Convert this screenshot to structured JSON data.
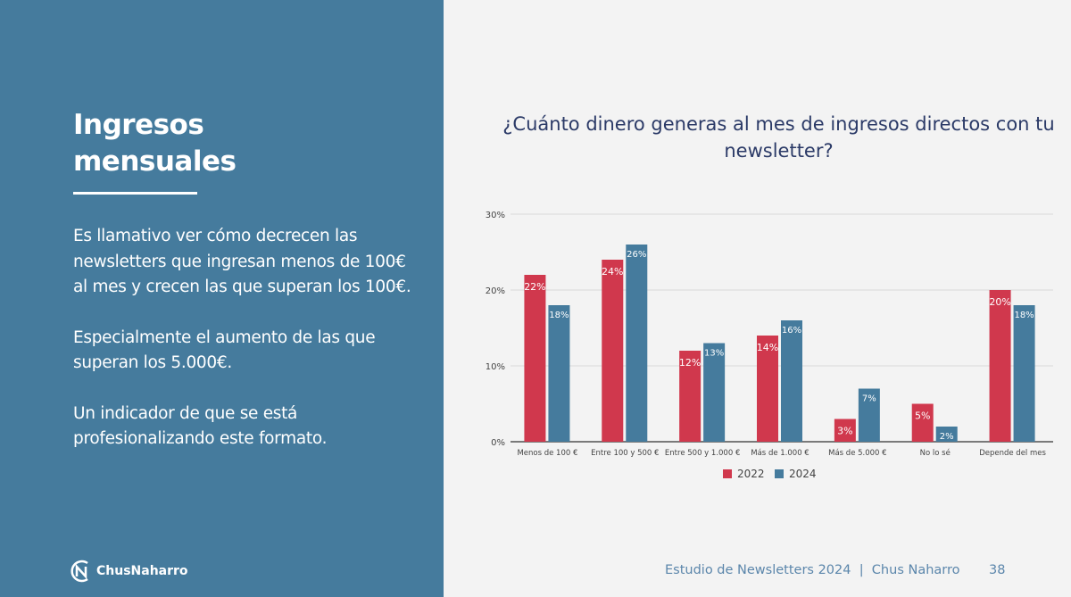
{
  "left": {
    "title_line1": "Ingresos",
    "title_line2": "mensuales",
    "paragraphs": [
      "Es llamativo ver cómo decrecen las newsletters que ingresan menos de 100€ al mes y crecen las que superan los 100€.",
      "Especialmente el aumento de las que superan los 5.000€.",
      "Un indicador de que se está profesionalizando este formato."
    ],
    "logo_text": "ChusNaharro"
  },
  "footer": {
    "text": "Estudio de Newsletters 2024  |  Chus Naharro",
    "page": "38"
  },
  "colors": {
    "panel": "#457b9d",
    "series_2022": "#d0384d",
    "series_2024": "#457b9d"
  },
  "chart_data": {
    "type": "bar",
    "title": "¿Cuánto dinero generas al mes de ingresos directos con tu newsletter?",
    "categories": [
      "Menos de 100 €",
      "Entre 100 y 500 €",
      "Entre 500 y 1.000 €",
      "Más de 1.000 €",
      "Más de 5.000 €",
      "No lo sé",
      "Depende del mes"
    ],
    "series": [
      {
        "name": "2022",
        "values": [
          22,
          24,
          12,
          14,
          3,
          5,
          20
        ]
      },
      {
        "name": "2024",
        "values": [
          18,
          26,
          13,
          16,
          7,
          2,
          18
        ]
      }
    ],
    "yticks": [
      "0%",
      "10%",
      "20%",
      "30%"
    ],
    "ylim": [
      0,
      30
    ],
    "grid": true,
    "legend": "bottom"
  }
}
